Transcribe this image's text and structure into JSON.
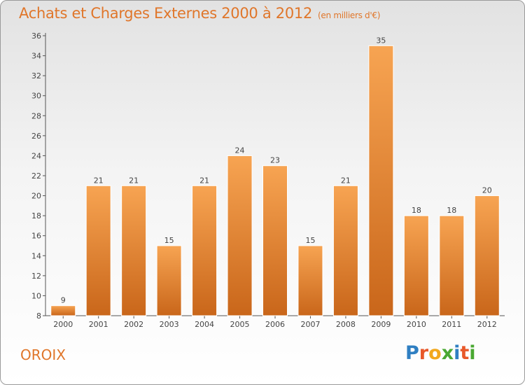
{
  "title": "Achats et Charges Externes 2000 à 2012",
  "unit_note": "(en milliers d'€)",
  "location": "OROIX",
  "brand": {
    "letters": [
      "P",
      "r",
      "o",
      "x",
      "i",
      "t",
      "i"
    ],
    "colors": [
      "#2f7fc2",
      "#e8582a",
      "#f2a81d",
      "#4aa832",
      "#2f7fc2",
      "#e8582a",
      "#4aa832"
    ]
  },
  "chart_data": {
    "type": "bar",
    "categories": [
      "2000",
      "2001",
      "2002",
      "2003",
      "2004",
      "2005",
      "2006",
      "2007",
      "2008",
      "2009",
      "2010",
      "2011",
      "2012"
    ],
    "values": [
      9,
      21,
      21,
      15,
      21,
      24,
      23,
      15,
      21,
      35,
      18,
      18,
      20
    ],
    "ylim": [
      8,
      36
    ],
    "yticks": [
      8,
      10,
      12,
      14,
      16,
      18,
      20,
      22,
      24,
      26,
      28,
      30,
      32,
      34,
      36
    ],
    "xlabel": "",
    "ylabel": "",
    "grid": false,
    "bar_color_top": "#f7a452",
    "bar_color_bottom": "#c9661a"
  }
}
